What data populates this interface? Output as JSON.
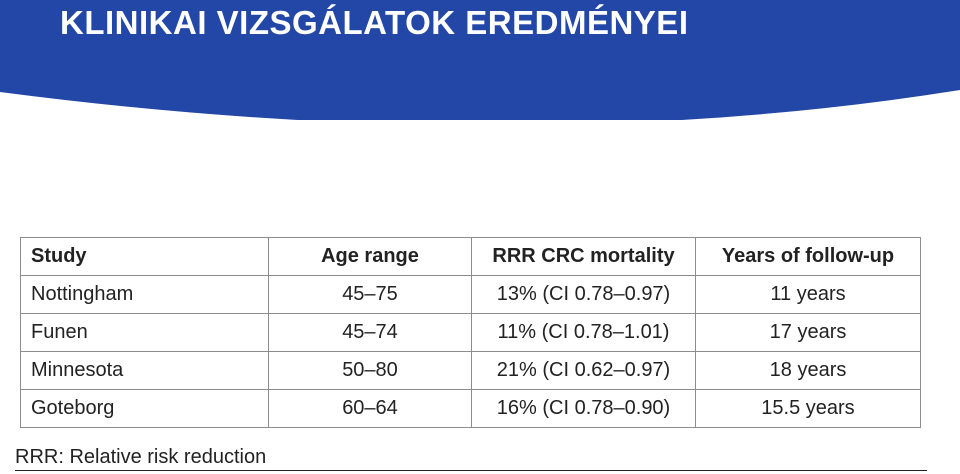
{
  "slide": {
    "title": "KLINIKAI VIZSGÁLATOK EREDMÉNYEI",
    "banner_color": "#2347a6"
  },
  "table": {
    "headers": [
      "Study",
      "Age range",
      "RRR CRC mortality",
      "Years of follow-up"
    ],
    "rows": [
      [
        "Nottingham",
        "45–75",
        "13% (CI 0.78–0.97)",
        "11 years"
      ],
      [
        "Funen",
        "45–74",
        "11% (CI 0.78–1.01)",
        "17 years"
      ],
      [
        "Minnesota",
        "50–80",
        "21% (CI 0.62–0.97)",
        "18 years"
      ],
      [
        "Goteborg",
        "60–64",
        "16% (CI 0.78–0.90)",
        "15.5 years"
      ]
    ]
  },
  "footnote": "RRR: Relative risk reduction"
}
